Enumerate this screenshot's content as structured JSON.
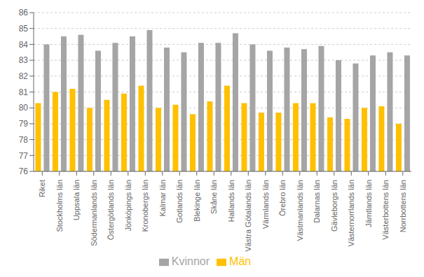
{
  "chart_data": {
    "type": "bar",
    "categories": [
      "Riket",
      "Stockholms län",
      "Uppsala län",
      "Södermanlands län",
      "Östergötlands län",
      "Jönköpings län",
      "Kronobergs län",
      "Kalmar län",
      "Gotlands län",
      "Blekinge län",
      "Skåne län",
      "Hallands län",
      "Västra Götalands län",
      "Värmlands län",
      "Örebro län",
      "Västmanlands län",
      "Dalarnas län",
      "Gävleborgs län",
      "Västernorrlands län",
      "Jämtlands län",
      "Västerbottens län",
      "Norrbottens län"
    ],
    "series": [
      {
        "name": "Män",
        "color": "#FFC000",
        "values": [
          80.3,
          81.0,
          81.2,
          80.0,
          80.5,
          80.9,
          81.4,
          80.0,
          80.2,
          79.6,
          80.4,
          81.4,
          80.3,
          79.7,
          79.7,
          80.3,
          80.3,
          79.4,
          79.3,
          80.0,
          80.1,
          79.0
        ]
      },
      {
        "name": "Kvinnor",
        "color": "#A5A5A5",
        "values": [
          84.0,
          84.5,
          84.6,
          83.6,
          84.1,
          84.5,
          84.9,
          83.8,
          83.5,
          84.1,
          84.1,
          84.7,
          84.0,
          83.6,
          83.8,
          83.7,
          83.9,
          83.0,
          82.8,
          83.3,
          83.5,
          83.3
        ]
      }
    ],
    "ylim": [
      76,
      86
    ],
    "yticks": [
      76,
      77,
      78,
      79,
      80,
      81,
      82,
      83,
      84,
      85,
      86
    ],
    "grid": true,
    "legend": "bottom"
  }
}
